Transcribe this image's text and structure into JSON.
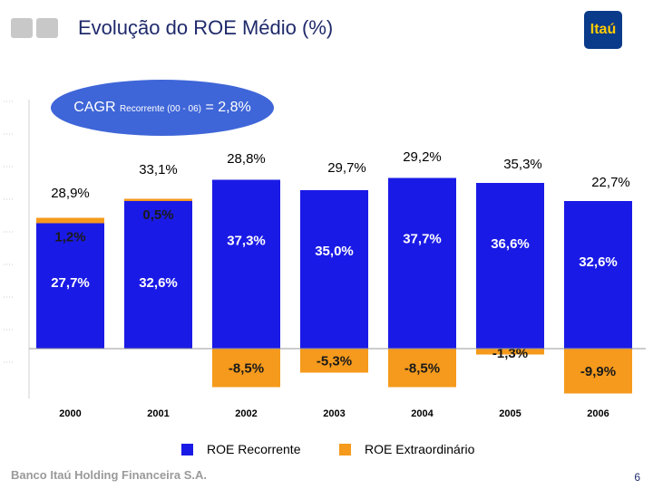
{
  "title": "Evolução do ROE Médio (%)",
  "logo_text": "Itaú",
  "cagr": {
    "main": "CAGR",
    "sub": "Recorrente (00 - 06)",
    "value": "= 2,8%"
  },
  "footer": "Banco Itaú Holding Financeira S.A.",
  "page_number": "6",
  "colors": {
    "recurring": "#1a1ae6",
    "extraordinary": "#f59a1c",
    "cagr_bg": "#3f66d8",
    "title": "#1f2a6b"
  },
  "chart_data": {
    "type": "bar",
    "stacked": true,
    "categories": [
      "2000",
      "2001",
      "2002",
      "2003",
      "2004",
      "2005",
      "2006"
    ],
    "totals": [
      "28,9%",
      "33,1%",
      "28,8%",
      "29,7%",
      "29,2%",
      "35,3%",
      "22,7%"
    ],
    "series": [
      {
        "name": "ROE Recorrente",
        "values": [
          27.7,
          32.6,
          37.3,
          35.0,
          37.7,
          36.6,
          32.6
        ],
        "labels": [
          "27,7%",
          "32,6%",
          "37,3%",
          "35,0%",
          "37,7%",
          "36,6%",
          "32,6%"
        ]
      },
      {
        "name": "ROE Extraordinário",
        "values": [
          1.2,
          0.5,
          -8.5,
          -5.3,
          -8.5,
          -1.3,
          -9.9
        ],
        "labels": [
          "1,2%",
          "0,5%",
          "-8,5%",
          "-5,3%",
          "-8,5%",
          "-1,3%",
          "-9,9%"
        ]
      }
    ],
    "legend": [
      "ROE Recorrente",
      "ROE Extraordinário"
    ]
  }
}
